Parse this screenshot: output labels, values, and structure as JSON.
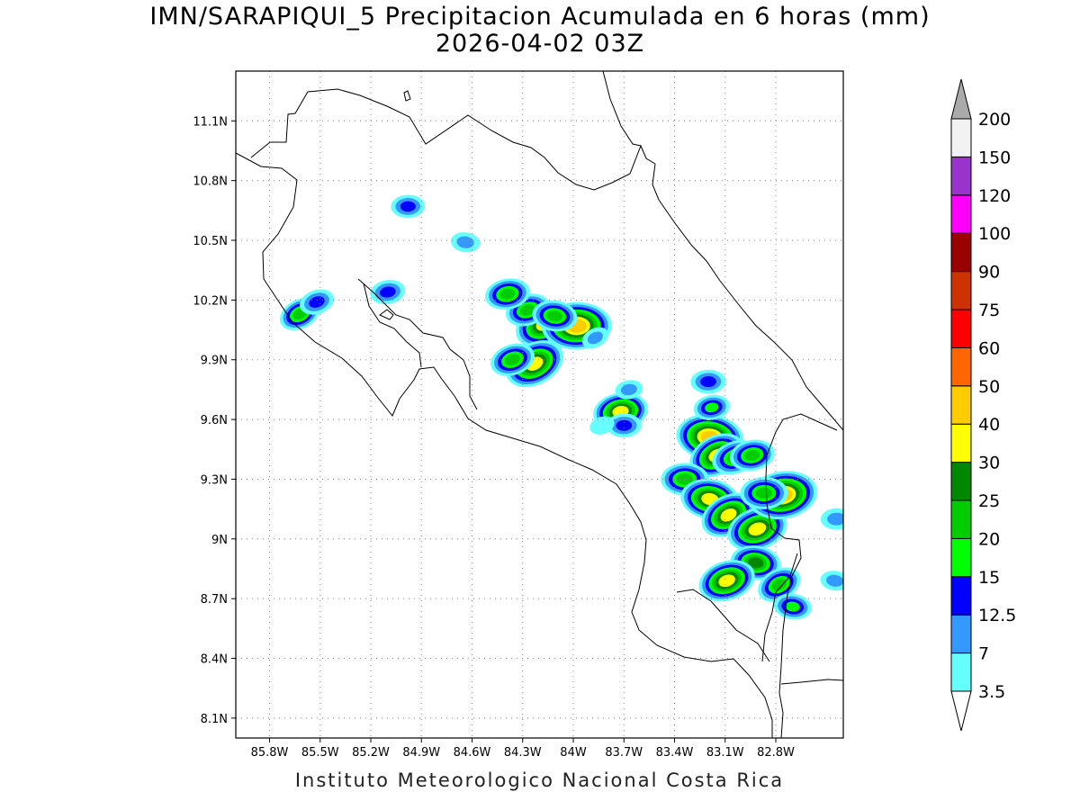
{
  "title": "IMN/SARAPIQUI_5 Precipitacion Acumulada en 6 horas (mm)",
  "subtitle": "2026-04-02 03Z",
  "credit": "Instituto Meteorologico Nacional Costa Rica",
  "map": {
    "lon_range": [
      -86.0,
      -82.4
    ],
    "lat_range": [
      8.0,
      11.35
    ],
    "lat_ticks": [
      {
        "value": 11.1,
        "label": "11.1N"
      },
      {
        "value": 10.8,
        "label": "10.8N"
      },
      {
        "value": 10.5,
        "label": "10.5N"
      },
      {
        "value": 10.2,
        "label": "10.2N"
      },
      {
        "value": 9.9,
        "label": "9.9N"
      },
      {
        "value": 9.6,
        "label": "9.6N"
      },
      {
        "value": 9.3,
        "label": "9.3N"
      },
      {
        "value": 9.0,
        "label": "9N"
      },
      {
        "value": 8.7,
        "label": "8.7N"
      },
      {
        "value": 8.4,
        "label": "8.4N"
      },
      {
        "value": 8.1,
        "label": "8.1N"
      }
    ],
    "lon_ticks": [
      {
        "value": -85.8,
        "label": "85.8W"
      },
      {
        "value": -85.5,
        "label": "85.5W"
      },
      {
        "value": -85.2,
        "label": "85.2W"
      },
      {
        "value": -84.9,
        "label": "84.9W"
      },
      {
        "value": -84.6,
        "label": "84.6W"
      },
      {
        "value": -84.3,
        "label": "84.3W"
      },
      {
        "value": -84.0,
        "label": "84W"
      },
      {
        "value": -83.7,
        "label": "83.7W"
      },
      {
        "value": -83.4,
        "label": "83.4W"
      },
      {
        "value": -83.1,
        "label": "83.1W"
      },
      {
        "value": -82.8,
        "label": "82.8W"
      }
    ],
    "grid": true
  },
  "legend": {
    "labels": [
      "3.5",
      "7",
      "12.5",
      "15",
      "20",
      "25",
      "30",
      "40",
      "50",
      "60",
      "75",
      "90",
      "100",
      "120",
      "150",
      "200"
    ],
    "colors": [
      "#66ffff",
      "#3399ff",
      "#0000ff",
      "#00ff00",
      "#00cc00",
      "#008800",
      "#ffff00",
      "#ffcc00",
      "#ff6600",
      "#ff0000",
      "#cc3300",
      "#990000",
      "#ff00ff",
      "#9933cc",
      "#f2f2f2"
    ],
    "under_color": "#ffffff",
    "over_color": "#aaaaaa"
  },
  "precip_cells": [
    {
      "lon": -84.17,
      "lat": 10.08,
      "peak": 35
    },
    {
      "lon": -84.27,
      "lat": 10.15,
      "peak": 22
    },
    {
      "lon": -84.39,
      "lat": 10.23,
      "peak": 22
    },
    {
      "lon": -83.98,
      "lat": 10.07,
      "peak": 42
    },
    {
      "lon": -84.11,
      "lat": 10.12,
      "peak": 22
    },
    {
      "lon": -84.23,
      "lat": 9.88,
      "peak": 35
    },
    {
      "lon": -84.36,
      "lat": 9.9,
      "peak": 22
    },
    {
      "lon": -83.72,
      "lat": 9.64,
      "peak": 30
    },
    {
      "lon": -83.7,
      "lat": 9.57,
      "peak": 14
    },
    {
      "lon": -83.19,
      "lat": 9.51,
      "peak": 40
    },
    {
      "lon": -83.15,
      "lat": 9.42,
      "peak": 32
    },
    {
      "lon": -83.04,
      "lat": 9.41,
      "peak": 24
    },
    {
      "lon": -82.94,
      "lat": 9.42,
      "peak": 22
    },
    {
      "lon": -83.34,
      "lat": 9.3,
      "peak": 24
    },
    {
      "lon": -83.19,
      "lat": 9.2,
      "peak": 33
    },
    {
      "lon": -83.08,
      "lat": 9.12,
      "peak": 32
    },
    {
      "lon": -82.91,
      "lat": 9.05,
      "peak": 35
    },
    {
      "lon": -82.76,
      "lat": 9.22,
      "peak": 42
    },
    {
      "lon": -82.87,
      "lat": 9.23,
      "peak": 24
    },
    {
      "lon": -82.92,
      "lat": 8.88,
      "peak": 26
    },
    {
      "lon": -82.78,
      "lat": 8.77,
      "peak": 22
    },
    {
      "lon": -83.09,
      "lat": 8.79,
      "peak": 32
    },
    {
      "lon": -83.18,
      "lat": 9.66,
      "peak": 15
    },
    {
      "lon": -83.2,
      "lat": 9.79,
      "peak": 14
    },
    {
      "lon": -82.7,
      "lat": 8.66,
      "peak": 16
    },
    {
      "lon": -85.62,
      "lat": 10.13,
      "peak": 20
    },
    {
      "lon": -85.52,
      "lat": 10.19,
      "peak": 14
    },
    {
      "lon": -85.1,
      "lat": 10.24,
      "peak": 14
    },
    {
      "lon": -84.98,
      "lat": 10.67,
      "peak": 13
    },
    {
      "lon": -84.64,
      "lat": 10.49,
      "peak": 9
    },
    {
      "lon": -83.87,
      "lat": 10.01,
      "peak": 8
    },
    {
      "lon": -83.83,
      "lat": 9.57,
      "peak": 6
    },
    {
      "lon": -83.67,
      "lat": 9.75,
      "peak": 8
    },
    {
      "lon": -82.44,
      "lat": 9.1,
      "peak": 11
    },
    {
      "lon": -82.45,
      "lat": 8.79,
      "peak": 9
    }
  ]
}
